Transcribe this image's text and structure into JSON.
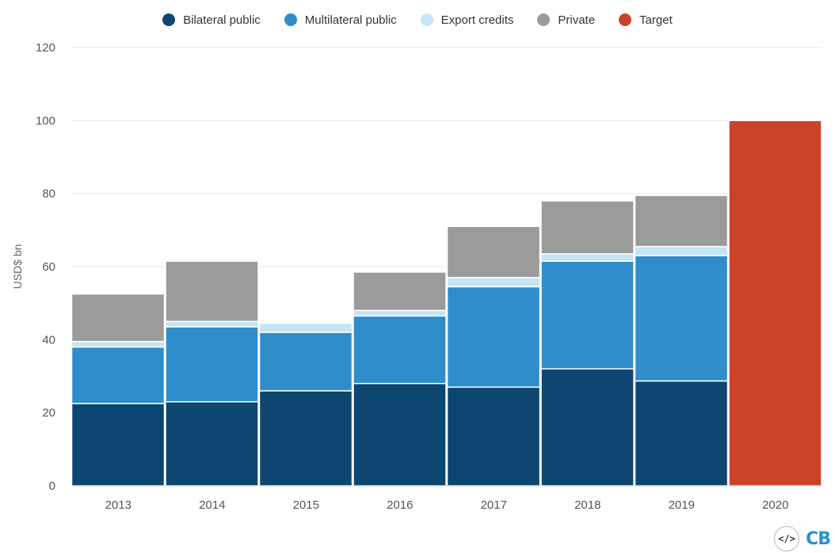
{
  "legend": {
    "items": [
      {
        "label": "Bilateral public",
        "color": "#0d4670"
      },
      {
        "label": "Multilateral public",
        "color": "#2f8dcc"
      },
      {
        "label": "Export credits",
        "color": "#c4e4f7"
      },
      {
        "label": "Private",
        "color": "#9b9b9b"
      },
      {
        "label": "Target",
        "color": "#c9432b"
      }
    ]
  },
  "chart_data": {
    "type": "bar",
    "stacked": true,
    "categories": [
      "2013",
      "2014",
      "2015",
      "2016",
      "2017",
      "2018",
      "2019",
      "2020"
    ],
    "series": [
      {
        "name": "Bilateral public",
        "color": "#0d4670",
        "values": [
          22.5,
          23,
          26,
          28,
          27,
          32,
          28.7,
          0
        ]
      },
      {
        "name": "Multilateral public",
        "color": "#2f8dcc",
        "values": [
          15.5,
          20.5,
          16,
          18.5,
          27.5,
          29.5,
          34.3,
          0
        ]
      },
      {
        "name": "Export credits",
        "color": "#c4e4f7",
        "values": [
          1.5,
          1.5,
          2.5,
          1.5,
          2.5,
          2,
          2.5,
          0
        ]
      },
      {
        "name": "Private",
        "color": "#9b9b9b",
        "values": [
          13,
          16.5,
          0,
          10.5,
          14,
          14.5,
          14,
          0
        ]
      },
      {
        "name": "Target",
        "color": "#c9432b",
        "values": [
          0,
          0,
          0,
          0,
          0,
          0,
          0,
          100
        ]
      }
    ],
    "ylabel": "USD$ bn",
    "ylim": [
      0,
      120
    ],
    "yticks": [
      "0",
      "20",
      "40",
      "60",
      "80",
      "100",
      "120"
    ],
    "grid": true,
    "legend_position": "top"
  },
  "branding": {
    "embed_icon": "</>",
    "logo": "CB"
  }
}
